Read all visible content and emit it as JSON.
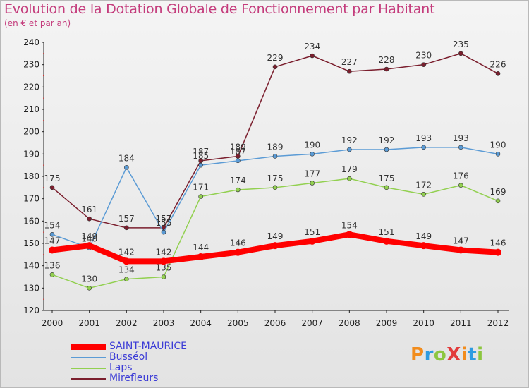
{
  "header": {
    "title": "Evolution de la Dotation Globale de Fonctionnement par Habitant",
    "subtitle": "(en € et par an)"
  },
  "logo": {
    "text": "ProXiti",
    "colors": [
      "#f28c1c",
      "#2e9be0",
      "#8cc63f",
      "#e23b3b",
      "#f28c1c",
      "#2e9be0",
      "#8cc63f"
    ]
  },
  "chart_data": {
    "type": "line",
    "categories": [
      "2000",
      "2001",
      "2002",
      "2003",
      "2004",
      "2005",
      "2006",
      "2007",
      "2008",
      "2009",
      "2010",
      "2011",
      "2012"
    ],
    "ylim": [
      120,
      240
    ],
    "yticks": [
      120,
      130,
      140,
      150,
      160,
      170,
      180,
      190,
      200,
      210,
      220,
      230,
      240
    ],
    "grid": false,
    "legend_position": "bottom-left",
    "series": [
      {
        "name": "SAINT-MAURICE",
        "color": "#ff0000",
        "width": 8,
        "values": [
          147,
          149,
          142,
          142,
          144,
          146,
          149,
          151,
          154,
          151,
          149,
          147,
          146
        ]
      },
      {
        "name": "Busséol",
        "color": "#5b9bd5",
        "width": 1.5,
        "values": [
          154,
          148,
          184,
          155,
          185,
          187,
          189,
          190,
          192,
          192,
          193,
          193,
          190
        ]
      },
      {
        "name": "Laps",
        "color": "#92d050",
        "width": 1.5,
        "values": [
          136,
          130,
          134,
          135,
          171,
          174,
          175,
          177,
          179,
          175,
          172,
          176,
          169
        ]
      },
      {
        "name": "Mirefleurs",
        "color": "#7b1f2e",
        "width": 1.5,
        "values": [
          175,
          161,
          157,
          157,
          187,
          189,
          229,
          234,
          227,
          228,
          230,
          235,
          226
        ]
      }
    ]
  }
}
